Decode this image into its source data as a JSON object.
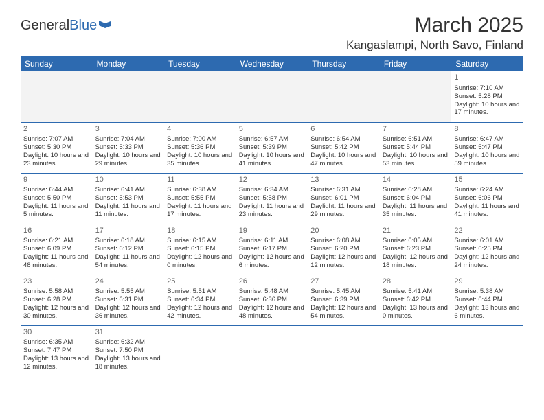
{
  "logo": {
    "text1": "General",
    "text2": "Blue"
  },
  "title": "March 2025",
  "location": "Kangaslampi, North Savo, Finland",
  "dayHeaders": [
    "Sunday",
    "Monday",
    "Tuesday",
    "Wednesday",
    "Thursday",
    "Friday",
    "Saturday"
  ],
  "colors": {
    "headerBg": "#2d6ab0",
    "headerText": "#ffffff",
    "border": "#2d6ab0",
    "emptyBg": "#f3f3f3",
    "text": "#333333",
    "dayNum": "#666666"
  },
  "typography": {
    "titleSize": 30,
    "locationSize": 17,
    "thSize": 12,
    "daynumSize": 11,
    "cellSize": 9.5
  },
  "layout": {
    "cols": 7,
    "rows": 6,
    "cellHeight": 74
  },
  "days": {
    "1": {
      "sunrise": "7:10 AM",
      "sunset": "5:28 PM",
      "daylight": "10 hours and 17 minutes."
    },
    "2": {
      "sunrise": "7:07 AM",
      "sunset": "5:30 PM",
      "daylight": "10 hours and 23 minutes."
    },
    "3": {
      "sunrise": "7:04 AM",
      "sunset": "5:33 PM",
      "daylight": "10 hours and 29 minutes."
    },
    "4": {
      "sunrise": "7:00 AM",
      "sunset": "5:36 PM",
      "daylight": "10 hours and 35 minutes."
    },
    "5": {
      "sunrise": "6:57 AM",
      "sunset": "5:39 PM",
      "daylight": "10 hours and 41 minutes."
    },
    "6": {
      "sunrise": "6:54 AM",
      "sunset": "5:42 PM",
      "daylight": "10 hours and 47 minutes."
    },
    "7": {
      "sunrise": "6:51 AM",
      "sunset": "5:44 PM",
      "daylight": "10 hours and 53 minutes."
    },
    "8": {
      "sunrise": "6:47 AM",
      "sunset": "5:47 PM",
      "daylight": "10 hours and 59 minutes."
    },
    "9": {
      "sunrise": "6:44 AM",
      "sunset": "5:50 PM",
      "daylight": "11 hours and 5 minutes."
    },
    "10": {
      "sunrise": "6:41 AM",
      "sunset": "5:53 PM",
      "daylight": "11 hours and 11 minutes."
    },
    "11": {
      "sunrise": "6:38 AM",
      "sunset": "5:55 PM",
      "daylight": "11 hours and 17 minutes."
    },
    "12": {
      "sunrise": "6:34 AM",
      "sunset": "5:58 PM",
      "daylight": "11 hours and 23 minutes."
    },
    "13": {
      "sunrise": "6:31 AM",
      "sunset": "6:01 PM",
      "daylight": "11 hours and 29 minutes."
    },
    "14": {
      "sunrise": "6:28 AM",
      "sunset": "6:04 PM",
      "daylight": "11 hours and 35 minutes."
    },
    "15": {
      "sunrise": "6:24 AM",
      "sunset": "6:06 PM",
      "daylight": "11 hours and 41 minutes."
    },
    "16": {
      "sunrise": "6:21 AM",
      "sunset": "6:09 PM",
      "daylight": "11 hours and 48 minutes."
    },
    "17": {
      "sunrise": "6:18 AM",
      "sunset": "6:12 PM",
      "daylight": "11 hours and 54 minutes."
    },
    "18": {
      "sunrise": "6:15 AM",
      "sunset": "6:15 PM",
      "daylight": "12 hours and 0 minutes."
    },
    "19": {
      "sunrise": "6:11 AM",
      "sunset": "6:17 PM",
      "daylight": "12 hours and 6 minutes."
    },
    "20": {
      "sunrise": "6:08 AM",
      "sunset": "6:20 PM",
      "daylight": "12 hours and 12 minutes."
    },
    "21": {
      "sunrise": "6:05 AM",
      "sunset": "6:23 PM",
      "daylight": "12 hours and 18 minutes."
    },
    "22": {
      "sunrise": "6:01 AM",
      "sunset": "6:25 PM",
      "daylight": "12 hours and 24 minutes."
    },
    "23": {
      "sunrise": "5:58 AM",
      "sunset": "6:28 PM",
      "daylight": "12 hours and 30 minutes."
    },
    "24": {
      "sunrise": "5:55 AM",
      "sunset": "6:31 PM",
      "daylight": "12 hours and 36 minutes."
    },
    "25": {
      "sunrise": "5:51 AM",
      "sunset": "6:34 PM",
      "daylight": "12 hours and 42 minutes."
    },
    "26": {
      "sunrise": "5:48 AM",
      "sunset": "6:36 PM",
      "daylight": "12 hours and 48 minutes."
    },
    "27": {
      "sunrise": "5:45 AM",
      "sunset": "6:39 PM",
      "daylight": "12 hours and 54 minutes."
    },
    "28": {
      "sunrise": "5:41 AM",
      "sunset": "6:42 PM",
      "daylight": "13 hours and 0 minutes."
    },
    "29": {
      "sunrise": "5:38 AM",
      "sunset": "6:44 PM",
      "daylight": "13 hours and 6 minutes."
    },
    "30": {
      "sunrise": "6:35 AM",
      "sunset": "7:47 PM",
      "daylight": "13 hours and 12 minutes."
    },
    "31": {
      "sunrise": "6:32 AM",
      "sunset": "7:50 PM",
      "daylight": "13 hours and 18 minutes."
    }
  },
  "labels": {
    "sunrise": "Sunrise: ",
    "sunset": "Sunset: ",
    "daylight": "Daylight: "
  },
  "grid": [
    [
      null,
      null,
      null,
      null,
      null,
      null,
      "1"
    ],
    [
      "2",
      "3",
      "4",
      "5",
      "6",
      "7",
      "8"
    ],
    [
      "9",
      "10",
      "11",
      "12",
      "13",
      "14",
      "15"
    ],
    [
      "16",
      "17",
      "18",
      "19",
      "20",
      "21",
      "22"
    ],
    [
      "23",
      "24",
      "25",
      "26",
      "27",
      "28",
      "29"
    ],
    [
      "30",
      "31",
      null,
      null,
      null,
      null,
      null
    ]
  ]
}
